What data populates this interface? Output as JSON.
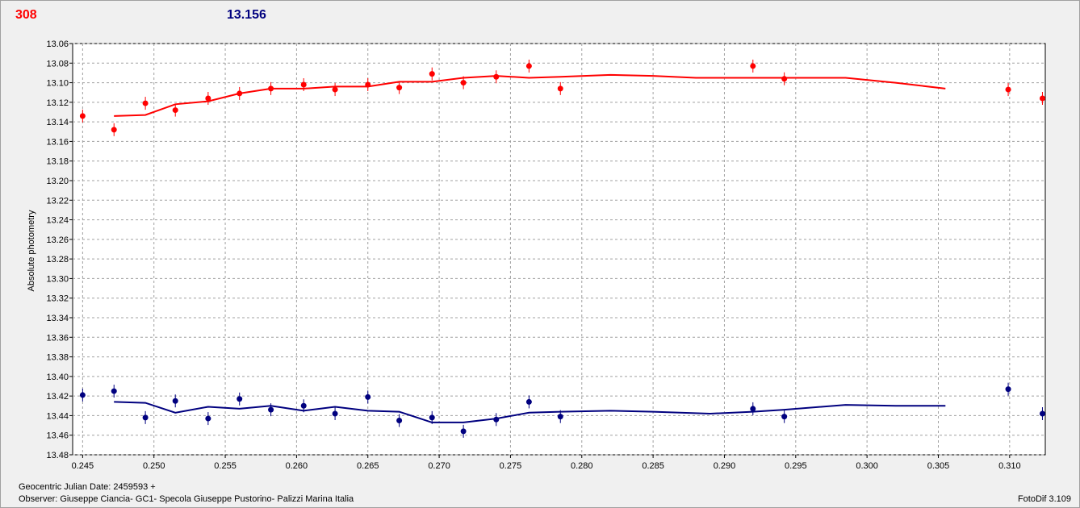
{
  "header": {
    "left_value": "308",
    "right_value": "13.156"
  },
  "footer": {
    "jd_label": "Geocentric Julian Date: 2459593 +",
    "observer": "Observer: Giuseppe Ciancia- GC1- Specola Giuseppe Pustorino- Palizzi Marina Italia",
    "version": "FotoDif 3.109"
  },
  "colors": {
    "red_series": "#ff0000",
    "blue_series": "#00007f",
    "grid": "#a0a0a0"
  },
  "chart_data": {
    "type": "scatter",
    "title": "",
    "xlabel": "",
    "ylabel": "Absolute photometry",
    "xlim": [
      0.2443,
      0.3125
    ],
    "ylim": [
      13.48,
      13.06
    ],
    "y_inverted": true,
    "grid": true,
    "x_ticks": [
      "0.245",
      "0.250",
      "0.255",
      "0.260",
      "0.265",
      "0.270",
      "0.275",
      "0.280",
      "0.285",
      "0.290",
      "0.295",
      "0.300",
      "0.305",
      "0.310"
    ],
    "y_ticks": [
      "13.06",
      "13.08",
      "13.10",
      "13.12",
      "13.14",
      "13.16",
      "13.18",
      "13.20",
      "13.22",
      "13.24",
      "13.26",
      "13.28",
      "13.30",
      "13.32",
      "13.34",
      "13.36",
      "13.38",
      "13.40",
      "13.42",
      "13.44",
      "13.46",
      "13.48"
    ],
    "series": [
      {
        "color": "#ff0000",
        "points": [
          [
            0.245,
            13.134
          ],
          [
            0.2472,
            13.148
          ],
          [
            0.2494,
            13.121
          ],
          [
            0.2515,
            13.128
          ],
          [
            0.2538,
            13.116
          ],
          [
            0.256,
            13.111
          ],
          [
            0.2582,
            13.106
          ],
          [
            0.2605,
            13.102
          ],
          [
            0.2627,
            13.107
          ],
          [
            0.265,
            13.102
          ],
          [
            0.2672,
            13.105
          ],
          [
            0.2695,
            13.091
          ],
          [
            0.2717,
            13.1
          ],
          [
            0.274,
            13.094
          ],
          [
            0.2763,
            13.083
          ],
          [
            0.2785,
            13.106
          ],
          [
            0.292,
            13.083
          ],
          [
            0.2942,
            13.096
          ],
          [
            0.3099,
            13.107
          ],
          [
            0.3123,
            13.116
          ]
        ],
        "fit": [
          [
            0.2472,
            13.134
          ],
          [
            0.2494,
            13.133
          ],
          [
            0.2515,
            13.122
          ],
          [
            0.2538,
            13.119
          ],
          [
            0.256,
            13.111
          ],
          [
            0.2582,
            13.106
          ],
          [
            0.2605,
            13.106
          ],
          [
            0.2627,
            13.104
          ],
          [
            0.265,
            13.104
          ],
          [
            0.2672,
            13.099
          ],
          [
            0.2695,
            13.099
          ],
          [
            0.2717,
            13.095
          ],
          [
            0.274,
            13.093
          ],
          [
            0.2763,
            13.095
          ],
          [
            0.2785,
            13.094
          ],
          [
            0.282,
            13.092
          ],
          [
            0.285,
            13.093
          ],
          [
            0.288,
            13.095
          ],
          [
            0.292,
            13.095
          ],
          [
            0.2942,
            13.095
          ],
          [
            0.2985,
            13.095
          ],
          [
            0.302,
            13.1
          ],
          [
            0.3055,
            13.106
          ]
        ]
      },
      {
        "color": "#00007f",
        "points": [
          [
            0.245,
            13.419
          ],
          [
            0.2472,
            13.415
          ],
          [
            0.2494,
            13.442
          ],
          [
            0.2515,
            13.425
          ],
          [
            0.2538,
            13.443
          ],
          [
            0.256,
            13.423
          ],
          [
            0.2582,
            13.434
          ],
          [
            0.2605,
            13.43
          ],
          [
            0.2627,
            13.438
          ],
          [
            0.265,
            13.421
          ],
          [
            0.2672,
            13.445
          ],
          [
            0.2695,
            13.442
          ],
          [
            0.2717,
            13.456
          ],
          [
            0.274,
            13.444
          ],
          [
            0.2763,
            13.426
          ],
          [
            0.2785,
            13.441
          ],
          [
            0.292,
            13.433
          ],
          [
            0.2942,
            13.441
          ],
          [
            0.3099,
            13.413
          ],
          [
            0.3123,
            13.438
          ]
        ],
        "fit": [
          [
            0.2472,
            13.426
          ],
          [
            0.2494,
            13.427
          ],
          [
            0.2515,
            13.437
          ],
          [
            0.2538,
            13.431
          ],
          [
            0.256,
            13.433
          ],
          [
            0.2582,
            13.43
          ],
          [
            0.2605,
            13.435
          ],
          [
            0.2627,
            13.431
          ],
          [
            0.265,
            13.435
          ],
          [
            0.2672,
            13.436
          ],
          [
            0.2695,
            13.447
          ],
          [
            0.2717,
            13.447
          ],
          [
            0.274,
            13.443
          ],
          [
            0.2763,
            13.437
          ],
          [
            0.2785,
            13.436
          ],
          [
            0.282,
            13.435
          ],
          [
            0.285,
            13.436
          ],
          [
            0.289,
            13.438
          ],
          [
            0.292,
            13.436
          ],
          [
            0.2942,
            13.434
          ],
          [
            0.2985,
            13.429
          ],
          [
            0.302,
            13.43
          ],
          [
            0.3055,
            13.43
          ]
        ]
      }
    ]
  }
}
